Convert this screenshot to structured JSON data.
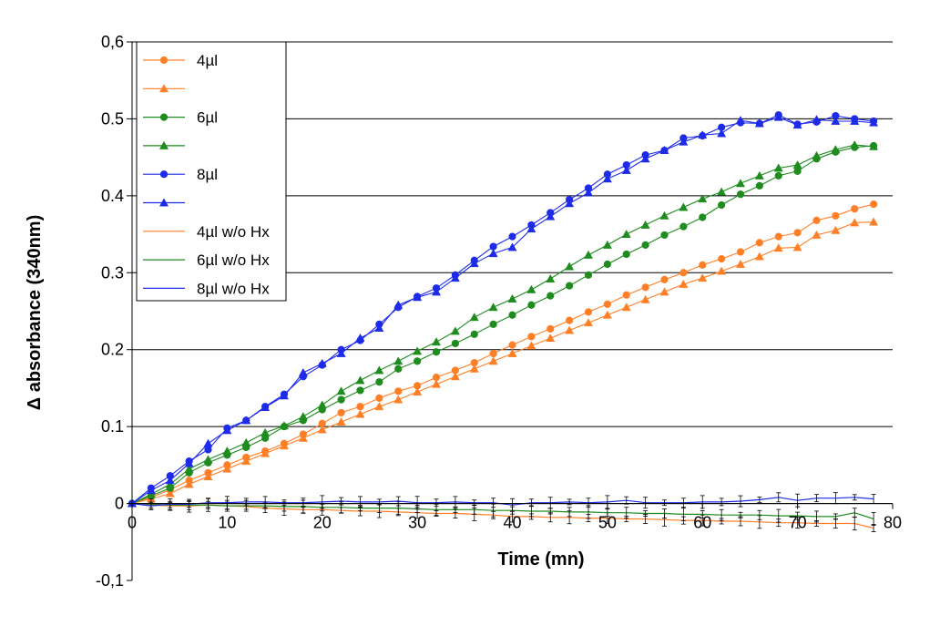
{
  "chart_data": {
    "type": "line",
    "xlabel": "Time (mn)",
    "ylabel": "Δ absorbance (340nm)",
    "xlim": [
      0,
      80
    ],
    "ylim": [
      -0.1,
      0.6
    ],
    "x_ticks": [
      "0",
      "10",
      "20",
      "30",
      "40",
      "50",
      "60",
      "70",
      "80"
    ],
    "y_ticks": [
      "-0,1",
      "0",
      "0.1",
      "0.2",
      "0.3",
      "0.4",
      "0.5",
      "0,6"
    ],
    "grid": "horizontal",
    "legend_position": "top-left",
    "x": [
      0,
      2,
      4,
      6,
      8,
      10,
      12,
      14,
      16,
      18,
      20,
      22,
      24,
      26,
      28,
      30,
      32,
      34,
      36,
      38,
      40,
      42,
      44,
      46,
      48,
      50,
      52,
      54,
      56,
      58,
      60,
      62,
      64,
      66,
      68,
      70,
      72,
      74,
      76,
      78
    ],
    "series": [
      {
        "name": "4µl",
        "color": "#FF7F27",
        "marker": "circle",
        "values": [
          0,
          0.008,
          0.018,
          0.03,
          0.04,
          0.05,
          0.06,
          0.068,
          0.078,
          0.09,
          0.104,
          0.118,
          0.126,
          0.137,
          0.146,
          0.153,
          0.164,
          0.173,
          0.183,
          0.195,
          0.206,
          0.217,
          0.227,
          0.238,
          0.249,
          0.259,
          0.271,
          0.281,
          0.291,
          0.3,
          0.31,
          0.318,
          0.327,
          0.339,
          0.347,
          0.352,
          0.368,
          0.374,
          0.383,
          0.389
        ]
      },
      {
        "name": "",
        "color": "#FF7F27",
        "marker": "triangle",
        "values": [
          0,
          0.006,
          0.013,
          0.025,
          0.035,
          0.045,
          0.055,
          0.065,
          0.075,
          0.085,
          0.096,
          0.106,
          0.116,
          0.126,
          0.135,
          0.145,
          0.155,
          0.165,
          0.175,
          0.185,
          0.195,
          0.205,
          0.215,
          0.225,
          0.235,
          0.245,
          0.255,
          0.265,
          0.275,
          0.285,
          0.293,
          0.302,
          0.311,
          0.321,
          0.332,
          0.333,
          0.349,
          0.355,
          0.365,
          0.366
        ]
      },
      {
        "name": "6µl",
        "color": "#1E8C1E",
        "marker": "circle",
        "values": [
          0,
          0.01,
          0.02,
          0.04,
          0.053,
          0.063,
          0.073,
          0.085,
          0.1,
          0.108,
          0.122,
          0.135,
          0.147,
          0.158,
          0.175,
          0.185,
          0.197,
          0.208,
          0.22,
          0.233,
          0.245,
          0.258,
          0.27,
          0.283,
          0.297,
          0.311,
          0.324,
          0.336,
          0.349,
          0.36,
          0.372,
          0.388,
          0.402,
          0.413,
          0.426,
          0.432,
          0.448,
          0.457,
          0.463,
          0.465
        ]
      },
      {
        "name": "",
        "color": "#1E8C1E",
        "marker": "triangle",
        "values": [
          0,
          0.012,
          0.025,
          0.045,
          0.057,
          0.068,
          0.079,
          0.092,
          0.101,
          0.113,
          0.128,
          0.146,
          0.16,
          0.173,
          0.185,
          0.198,
          0.21,
          0.224,
          0.242,
          0.255,
          0.266,
          0.278,
          0.292,
          0.308,
          0.323,
          0.336,
          0.35,
          0.362,
          0.374,
          0.385,
          0.396,
          0.405,
          0.416,
          0.426,
          0.436,
          0.44,
          0.452,
          0.46,
          0.466,
          0.464
        ]
      },
      {
        "name": "8µl",
        "color": "#1E2BE8",
        "marker": "circle",
        "values": [
          0,
          0.02,
          0.036,
          0.055,
          0.07,
          0.098,
          0.108,
          0.126,
          0.142,
          0.165,
          0.18,
          0.2,
          0.212,
          0.233,
          0.255,
          0.269,
          0.28,
          0.297,
          0.316,
          0.334,
          0.347,
          0.362,
          0.378,
          0.395,
          0.41,
          0.428,
          0.44,
          0.453,
          0.459,
          0.475,
          0.478,
          0.489,
          0.495,
          0.494,
          0.505,
          0.493,
          0.496,
          0.504,
          0.5,
          0.497
        ]
      },
      {
        "name": "",
        "color": "#1E2BE8",
        "marker": "triangle",
        "values": [
          0,
          0.017,
          0.03,
          0.052,
          0.078,
          0.095,
          0.108,
          0.125,
          0.14,
          0.17,
          0.182,
          0.195,
          0.215,
          0.228,
          0.258,
          0.268,
          0.275,
          0.293,
          0.312,
          0.325,
          0.333,
          0.357,
          0.373,
          0.39,
          0.404,
          0.422,
          0.433,
          0.448,
          0.459,
          0.47,
          0.479,
          0.481,
          0.498,
          0.494,
          0.502,
          0.492,
          0.499,
          0.497,
          0.497,
          0.495
        ]
      },
      {
        "name": "4µl w/o Hx",
        "color": "#FF7F27",
        "marker": "none",
        "values": [
          0,
          -0.002,
          -0.003,
          -0.003,
          -0.002,
          -0.003,
          -0.004,
          -0.006,
          -0.007,
          -0.008,
          -0.008,
          -0.009,
          -0.01,
          -0.01,
          -0.011,
          -0.012,
          -0.013,
          -0.013,
          -0.014,
          -0.015,
          -0.017,
          -0.017,
          -0.018,
          -0.018,
          -0.019,
          -0.019,
          -0.02,
          -0.02,
          -0.021,
          -0.022,
          -0.022,
          -0.023,
          -0.023,
          -0.024,
          -0.025,
          -0.025,
          -0.026,
          -0.026,
          -0.026,
          -0.032
        ]
      },
      {
        "name": "6µl w/o Hx",
        "color": "#1E8C1E",
        "marker": "none",
        "values": [
          0,
          -0.001,
          -0.002,
          -0.002,
          -0.002,
          -0.003,
          -0.003,
          -0.003,
          -0.004,
          -0.004,
          -0.005,
          -0.005,
          -0.006,
          -0.006,
          -0.006,
          -0.007,
          -0.008,
          -0.008,
          -0.008,
          -0.009,
          -0.009,
          -0.01,
          -0.01,
          -0.011,
          -0.011,
          -0.012,
          -0.012,
          -0.013,
          -0.013,
          -0.014,
          -0.014,
          -0.015,
          -0.015,
          -0.015,
          -0.016,
          -0.016,
          -0.017,
          -0.017,
          -0.012,
          -0.02
        ]
      },
      {
        "name": "8µl w/o Hx",
        "color": "#1E2BE8",
        "marker": "none",
        "values": [
          0,
          -0.003,
          -0.001,
          -0.001,
          0.001,
          0.001,
          0.002,
          0.002,
          0.001,
          0.001,
          0.002,
          0.003,
          0.002,
          0.002,
          0.003,
          0.001,
          0.001,
          0.002,
          0.001,
          0.001,
          -0.002,
          0.001,
          0.001,
          0.002,
          0.001,
          0.002,
          0.004,
          0.001,
          0.001,
          0.001,
          0.002,
          0.002,
          0.003,
          0.005,
          0.008,
          0.004,
          0.007,
          0.007,
          0.008,
          0.006
        ]
      }
    ]
  }
}
